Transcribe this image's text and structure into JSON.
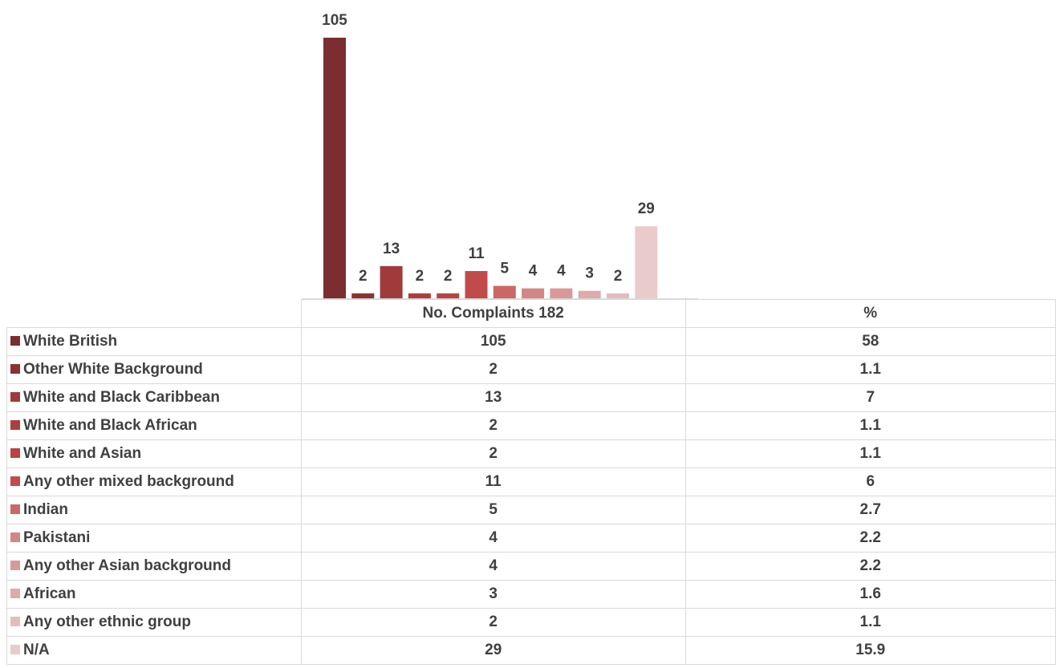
{
  "chart_data": {
    "type": "bar",
    "categories": [
      "White British",
      "Other White Background",
      "White and Black Caribbean",
      "White and Black African",
      "White and Asian",
      "Any other mixed background",
      "Indian",
      "Pakistani",
      "Any other Asian background",
      "African",
      "Any other ethnic group",
      "N/A"
    ],
    "values": [
      105,
      2,
      13,
      2,
      2,
      11,
      5,
      4,
      4,
      3,
      2,
      29
    ],
    "percent": [
      "58",
      "1.1",
      "7",
      "1.1",
      "1.1",
      "6",
      "2.7",
      "2.2",
      "2.2",
      "1.6",
      "1.1",
      "15.9"
    ],
    "colors": [
      "#7b2d2f",
      "#8c3232",
      "#a03b3b",
      "#ad3e3e",
      "#b84444",
      "#c14b4b",
      "#ca6767",
      "#d48585",
      "#d99999",
      "#ddaaaa",
      "#e3bcbc",
      "#e9cbcb"
    ],
    "ylim": [
      0,
      105
    ],
    "data_labels": true,
    "grid": false,
    "legend": "data-table"
  },
  "table": {
    "header_count": "No. Complaints 182",
    "header_pct": "%"
  }
}
